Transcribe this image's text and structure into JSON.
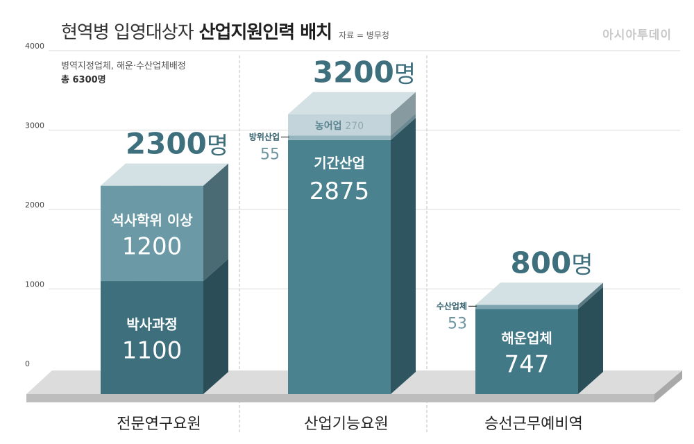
{
  "header": {
    "title_light": "현역병 입영대상자",
    "title_bold": "산업지원인력 배치",
    "source": "자료 = 병무청",
    "brand": "아시아투데이"
  },
  "note": {
    "line1": "병역지정업체, 해운·수산업체배정",
    "line2": "총 6300명"
  },
  "chart_data": {
    "type": "bar",
    "stacked": true,
    "ylim": [
      0,
      4000
    ],
    "yticks": [
      "0",
      "1000",
      "2000",
      "3000",
      "4000"
    ],
    "grid": true,
    "categories": [
      "전문연구요원",
      "산업기능요원",
      "승선근무예비역"
    ],
    "totals": [
      {
        "value": 2300,
        "label": "2300",
        "unit": "명"
      },
      {
        "value": 3200,
        "label": "3200",
        "unit": "명"
      },
      {
        "value": 800,
        "label": "800",
        "unit": "명"
      }
    ],
    "segments": [
      [
        {
          "name": "박사과정",
          "value": 1100,
          "value_label": "1100",
          "color": "#3e6f7d",
          "side": "#2b4d57"
        },
        {
          "name": "석사학위 이상",
          "value": 1200,
          "value_label": "1200",
          "color": "#6b9aa6",
          "side": "#4a6b74"
        }
      ],
      [
        {
          "name": "기간산업",
          "value": 2875,
          "value_label": "2875",
          "color": "#4b8290",
          "side": "#2e5560"
        },
        {
          "name": "방위산업",
          "value": 55,
          "value_label": "55",
          "color": "#96b7c0",
          "side": "#6b8a93",
          "callout": true
        },
        {
          "name": "농어업",
          "value": 270,
          "value_label": "270",
          "color": "#c3d5da",
          "side": "#879a9f"
        }
      ],
      [
        {
          "name": "해운업체",
          "value": 747,
          "value_label": "747",
          "color": "#427987",
          "side": "#2b4f59"
        },
        {
          "name": "수산업체",
          "value": 53,
          "value_label": "53",
          "color": "#7fa6b0",
          "side": "#5a7a83",
          "callout": true
        }
      ]
    ]
  }
}
